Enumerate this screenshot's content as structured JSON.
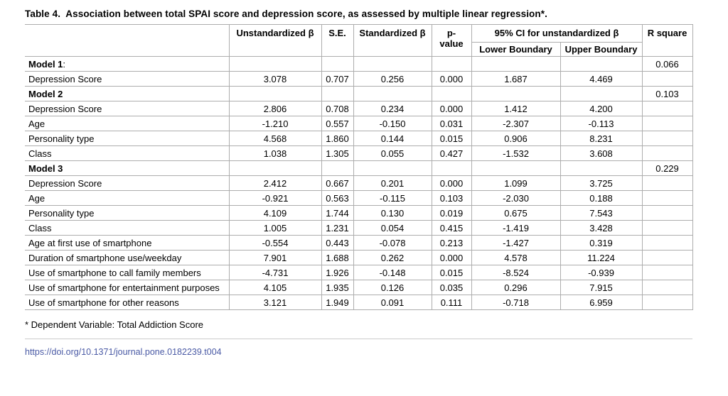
{
  "title": "Table 4.  Association between total SPAI score and depression score, as assessed by multiple linear regression*.",
  "table": {
    "headers": {
      "row_label": "",
      "unstandardized_beta": "Unstandardized β",
      "se": "S.E.",
      "standardized_beta": "Standardized β",
      "p_value": "p-value",
      "ci": "95% CI for unstandardized β",
      "ci_lower": "Lower Boundary",
      "ci_upper": "Upper Boundary",
      "r_square": "R square"
    },
    "rows": [
      {
        "type": "model",
        "label": "Model 1",
        "suffix": ":",
        "values": [
          "",
          "",
          "",
          "",
          "",
          ""
        ],
        "r_square": "0.066"
      },
      {
        "type": "data",
        "label": "Depression Score",
        "suffix": "",
        "values": [
          "3.078",
          "0.707",
          "0.256",
          "0.000",
          "1.687",
          "4.469"
        ],
        "r_square": ""
      },
      {
        "type": "model",
        "label": "Model 2",
        "suffix": "",
        "values": [
          "",
          "",
          "",
          "",
          "",
          ""
        ],
        "r_square": "0.103"
      },
      {
        "type": "data",
        "label": "Depression Score",
        "suffix": "",
        "values": [
          "2.806",
          "0.708",
          "0.234",
          "0.000",
          "1.412",
          "4.200"
        ],
        "r_square": ""
      },
      {
        "type": "data",
        "label": "Age",
        "suffix": "",
        "values": [
          "-1.210",
          "0.557",
          "-0.150",
          "0.031",
          "-2.307",
          "-0.113"
        ],
        "r_square": ""
      },
      {
        "type": "data",
        "label": "Personality type",
        "suffix": "",
        "values": [
          "4.568",
          "1.860",
          "0.144",
          "0.015",
          "0.906",
          "8.231"
        ],
        "r_square": ""
      },
      {
        "type": "data",
        "label": "Class",
        "suffix": "",
        "values": [
          "1.038",
          "1.305",
          "0.055",
          "0.427",
          "-1.532",
          "3.608"
        ],
        "r_square": ""
      },
      {
        "type": "model",
        "label": "Model 3",
        "suffix": "",
        "values": [
          "",
          "",
          "",
          "",
          "",
          ""
        ],
        "r_square": "0.229"
      },
      {
        "type": "data",
        "label": "Depression Score",
        "suffix": "",
        "values": [
          "2.412",
          "0.667",
          "0.201",
          "0.000",
          "1.099",
          "3.725"
        ],
        "r_square": ""
      },
      {
        "type": "data",
        "label": "Age",
        "suffix": "",
        "values": [
          "-0.921",
          "0.563",
          "-0.115",
          "0.103",
          "-2.030",
          "0.188"
        ],
        "r_square": ""
      },
      {
        "type": "data",
        "label": "Personality type",
        "suffix": "",
        "values": [
          "4.109",
          "1.744",
          "0.130",
          "0.019",
          "0.675",
          "7.543"
        ],
        "r_square": ""
      },
      {
        "type": "data",
        "label": "Class",
        "suffix": "",
        "values": [
          "1.005",
          "1.231",
          "0.054",
          "0.415",
          "-1.419",
          "3.428"
        ],
        "r_square": ""
      },
      {
        "type": "data",
        "label": "Age at first use of smartphone",
        "suffix": "",
        "values": [
          "-0.554",
          "0.443",
          "-0.078",
          "0.213",
          "-1.427",
          "0.319"
        ],
        "r_square": ""
      },
      {
        "type": "data",
        "label": "Duration of smartphone use/weekday",
        "suffix": "",
        "values": [
          "7.901",
          "1.688",
          "0.262",
          "0.000",
          "4.578",
          "11.224"
        ],
        "r_square": ""
      },
      {
        "type": "data",
        "label": "Use of smartphone to call family members",
        "suffix": "",
        "values": [
          "-4.731",
          "1.926",
          "-0.148",
          "0.015",
          "-8.524",
          "-0.939"
        ],
        "r_square": ""
      },
      {
        "type": "data",
        "label": "Use of smartphone for entertainment purposes",
        "suffix": "",
        "values": [
          "4.105",
          "1.935",
          "0.126",
          "0.035",
          "0.296",
          "7.915"
        ],
        "r_square": ""
      },
      {
        "type": "data",
        "label": "Use of smartphone for other reasons",
        "suffix": "",
        "values": [
          "3.121",
          "1.949",
          "0.091",
          "0.111",
          "-0.718",
          "6.959"
        ],
        "r_square": ""
      }
    ]
  },
  "footnote": "* Dependent Variable: Total Addiction Score",
  "doi_link": "https://doi.org/10.1371/journal.pone.0182239.t004",
  "colors": {
    "border": "#adadad",
    "link": "#4a5aa5",
    "rule": "#cbcbcb",
    "text": "#000000"
  }
}
